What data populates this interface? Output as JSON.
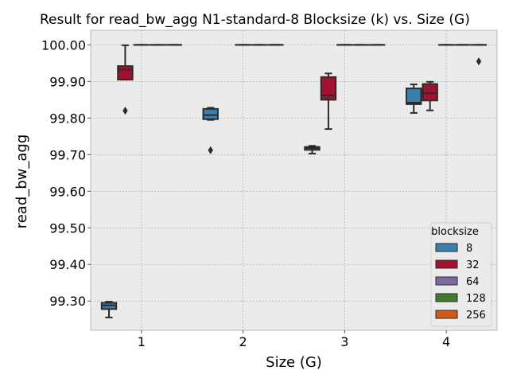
{
  "chart_data": {
    "type": "box",
    "title": "Result for read_bw_agg N1-standard-8 Blocksize (k) vs. Size (G)",
    "xlabel": "Size (G)",
    "ylabel": "read_bw_agg",
    "categories": [
      "1",
      "2",
      "3",
      "4"
    ],
    "yticks": [
      "99.30",
      "99.40",
      "99.50",
      "99.60",
      "99.70",
      "99.80",
      "99.90",
      "100.00"
    ],
    "ylim": [
      99.22,
      100.04
    ],
    "grid": true,
    "legend": {
      "title": "blocksize",
      "position": "bottom-right",
      "entries": [
        {
          "label": "8",
          "color": "#3a7fae"
        },
        {
          "label": "32",
          "color": "#a2122f"
        },
        {
          "label": "64",
          "color": "#7a6aa0"
        },
        {
          "label": "128",
          "color": "#447a2e"
        },
        {
          "label": "256",
          "color": "#d05a16"
        }
      ]
    },
    "series": [
      {
        "name": "8",
        "color": "#3a7fae",
        "boxes": [
          {
            "category": "1",
            "whislo": 99.255,
            "q1": 99.278,
            "med": 99.288,
            "q3": 99.295,
            "whishi": 99.298,
            "fliers": []
          },
          {
            "category": "2",
            "whislo": 99.795,
            "q1": 99.797,
            "med": 99.808,
            "q3": 99.825,
            "whishi": 99.828,
            "fliers": [
              99.712
            ]
          },
          {
            "category": "3",
            "whislo": 99.703,
            "q1": 99.713,
            "med": 99.718,
            "q3": 99.721,
            "whishi": 99.724,
            "fliers": []
          },
          {
            "category": "4",
            "whislo": 99.814,
            "q1": 99.838,
            "med": 99.842,
            "q3": 99.881,
            "whishi": 99.892,
            "fliers": []
          }
        ]
      },
      {
        "name": "32",
        "color": "#a2122f",
        "boxes": [
          {
            "category": "1",
            "whislo": 99.905,
            "q1": 99.905,
            "med": 99.932,
            "q3": 99.942,
            "whishi": 99.999,
            "fliers": [
              99.82
            ]
          },
          {
            "category": "3",
            "whislo": 99.77,
            "q1": 99.85,
            "med": 99.862,
            "q3": 99.912,
            "whishi": 99.922,
            "fliers": []
          },
          {
            "category": "4",
            "whislo": 99.821,
            "q1": 99.848,
            "med": 99.868,
            "q3": 99.893,
            "whishi": 99.899,
            "fliers": []
          }
        ]
      },
      {
        "name": "64",
        "color": "#7a6aa0",
        "boxes": [
          {
            "category": "1",
            "whislo": 100.0,
            "q1": 100.0,
            "med": 100.0,
            "q3": 100.0,
            "whishi": 100.0,
            "fliers": []
          },
          {
            "category": "2",
            "whislo": 100.0,
            "q1": 100.0,
            "med": 100.0,
            "q3": 100.0,
            "whishi": 100.0,
            "fliers": []
          },
          {
            "category": "3",
            "whislo": 100.0,
            "q1": 100.0,
            "med": 100.0,
            "q3": 100.0,
            "whishi": 100.0,
            "fliers": []
          },
          {
            "category": "4",
            "whislo": 100.0,
            "q1": 100.0,
            "med": 100.0,
            "q3": 100.0,
            "whishi": 100.0,
            "fliers": []
          }
        ]
      },
      {
        "name": "128",
        "color": "#447a2e",
        "boxes": [
          {
            "category": "1",
            "whislo": 100.0,
            "q1": 100.0,
            "med": 100.0,
            "q3": 100.0,
            "whishi": 100.0,
            "fliers": []
          },
          {
            "category": "2",
            "whislo": 100.0,
            "q1": 100.0,
            "med": 100.0,
            "q3": 100.0,
            "whishi": 100.0,
            "fliers": []
          },
          {
            "category": "3",
            "whislo": 100.0,
            "q1": 100.0,
            "med": 100.0,
            "q3": 100.0,
            "whishi": 100.0,
            "fliers": []
          },
          {
            "category": "4",
            "whislo": 100.0,
            "q1": 100.0,
            "med": 100.0,
            "q3": 100.0,
            "whishi": 100.0,
            "fliers": []
          }
        ]
      },
      {
        "name": "256",
        "color": "#d05a16",
        "boxes": [
          {
            "category": "1",
            "whislo": 100.0,
            "q1": 100.0,
            "med": 100.0,
            "q3": 100.0,
            "whishi": 100.0,
            "fliers": []
          },
          {
            "category": "2",
            "whislo": 100.0,
            "q1": 100.0,
            "med": 100.0,
            "q3": 100.0,
            "whishi": 100.0,
            "fliers": []
          },
          {
            "category": "3",
            "whislo": 100.0,
            "q1": 100.0,
            "med": 100.0,
            "q3": 100.0,
            "whishi": 100.0,
            "fliers": []
          },
          {
            "category": "4",
            "whislo": 100.0,
            "q1": 100.0,
            "med": 100.0,
            "q3": 100.0,
            "whishi": 100.0,
            "fliers": [
              99.955
            ]
          }
        ]
      }
    ]
  }
}
